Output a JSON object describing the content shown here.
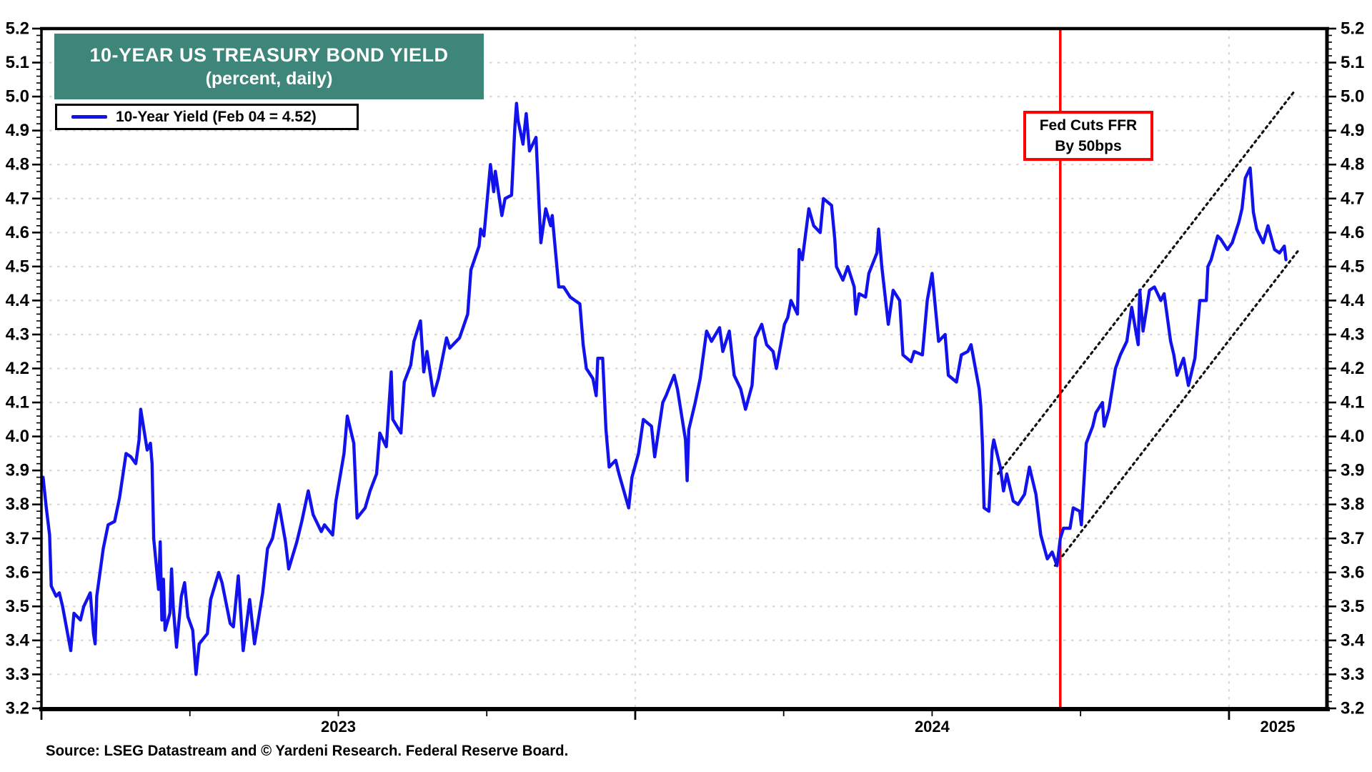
{
  "header": {
    "title": "10-YEAR US TREASURY BOND YIELD",
    "subtitle": "(percent, daily)"
  },
  "legend": {
    "series_label": "10-Year Yield (Feb 04 = 4.52)"
  },
  "annotation": {
    "line1": "Fed Cuts FFR",
    "line2": "By 50bps"
  },
  "footer": {
    "source": "Source: LSEG Datastream and © Yardeni Research. Federal Reserve Board."
  },
  "colors": {
    "series_blue": "#1212EC",
    "event_red": "#FF0000",
    "title_teal": "#3E857A",
    "grid_gray": "#D8D8D8",
    "channel_black": "#111111",
    "text_black": "#000000",
    "axis_black": "#000000",
    "background": "#FFFFFF"
  },
  "chart_data": {
    "type": "line",
    "title": "10-YEAR US TREASURY BOND YIELD",
    "subtitle": "(percent, daily)",
    "ylabel": "percent",
    "ylim": [
      3.2,
      5.2
    ],
    "y_tick_step": 0.1,
    "y_minor_tick_step": 0.02,
    "x_start_year": 2023.0,
    "x_end_year": 2025.165,
    "x_tick_years": [
      2023,
      2024,
      2025
    ],
    "x_minor_tick_step_years": 0.25,
    "x_year_labels": [
      "2023",
      "2024",
      "2025"
    ],
    "x_year_label_positions": [
      2023.5,
      2024.5,
      2025.082
    ],
    "grid_vertical_years": [
      2024,
      2025
    ],
    "grid_horizontal": true,
    "legend_position": "top-left",
    "event_line": {
      "date": "2024-09-18",
      "label": "Fed Cuts FFR By 50bps"
    },
    "event_box_anchor": {
      "t": 2024.763,
      "v": 4.885
    },
    "trend_channel": {
      "upper": {
        "from": {
          "t": 2024.611,
          "v": 3.89
        },
        "to": {
          "t": 2025.112,
          "v": 5.02
        }
      },
      "lower": {
        "from": {
          "t": 2024.707,
          "v": 3.62
        },
        "to": {
          "t": 2025.118,
          "v": 4.55
        }
      }
    },
    "series": [
      {
        "name": "10-Year Yield",
        "last_point_label": "Feb 04 = 4.52",
        "points": [
          [
            "2023-01-01",
            3.88
          ],
          [
            "2023-01-03",
            3.79
          ],
          [
            "2023-01-05",
            3.71
          ],
          [
            "2023-01-06",
            3.56
          ],
          [
            "2023-01-09",
            3.53
          ],
          [
            "2023-01-11",
            3.54
          ],
          [
            "2023-01-13",
            3.5
          ],
          [
            "2023-01-18",
            3.37
          ],
          [
            "2023-01-20",
            3.48
          ],
          [
            "2023-01-24",
            3.46
          ],
          [
            "2023-01-26",
            3.5
          ],
          [
            "2023-01-30",
            3.54
          ],
          [
            "2023-02-01",
            3.42
          ],
          [
            "2023-02-02",
            3.39
          ],
          [
            "2023-02-03",
            3.53
          ],
          [
            "2023-02-07",
            3.67
          ],
          [
            "2023-02-10",
            3.74
          ],
          [
            "2023-02-14",
            3.75
          ],
          [
            "2023-02-17",
            3.82
          ],
          [
            "2023-02-21",
            3.95
          ],
          [
            "2023-02-24",
            3.94
          ],
          [
            "2023-02-27",
            3.92
          ],
          [
            "2023-03-01",
            3.99
          ],
          [
            "2023-03-02",
            4.08
          ],
          [
            "2023-03-06",
            3.96
          ],
          [
            "2023-03-08",
            3.98
          ],
          [
            "2023-03-09",
            3.92
          ],
          [
            "2023-03-10",
            3.7
          ],
          [
            "2023-03-13",
            3.55
          ],
          [
            "2023-03-14",
            3.69
          ],
          [
            "2023-03-15",
            3.46
          ],
          [
            "2023-03-16",
            3.58
          ],
          [
            "2023-03-17",
            3.43
          ],
          [
            "2023-03-20",
            3.48
          ],
          [
            "2023-03-21",
            3.61
          ],
          [
            "2023-03-22",
            3.5
          ],
          [
            "2023-03-24",
            3.38
          ],
          [
            "2023-03-27",
            3.53
          ],
          [
            "2023-03-29",
            3.57
          ],
          [
            "2023-03-31",
            3.47
          ],
          [
            "2023-04-03",
            3.43
          ],
          [
            "2023-04-05",
            3.3
          ],
          [
            "2023-04-07",
            3.39
          ],
          [
            "2023-04-12",
            3.42
          ],
          [
            "2023-04-14",
            3.52
          ],
          [
            "2023-04-19",
            3.6
          ],
          [
            "2023-04-21",
            3.57
          ],
          [
            "2023-04-26",
            3.45
          ],
          [
            "2023-04-28",
            3.44
          ],
          [
            "2023-05-01",
            3.59
          ],
          [
            "2023-05-04",
            3.37
          ],
          [
            "2023-05-08",
            3.52
          ],
          [
            "2023-05-11",
            3.39
          ],
          [
            "2023-05-16",
            3.54
          ],
          [
            "2023-05-19",
            3.67
          ],
          [
            "2023-05-22",
            3.7
          ],
          [
            "2023-05-26",
            3.8
          ],
          [
            "2023-05-30",
            3.69
          ],
          [
            "2023-06-01",
            3.61
          ],
          [
            "2023-06-06",
            3.69
          ],
          [
            "2023-06-09",
            3.75
          ],
          [
            "2023-06-13",
            3.84
          ],
          [
            "2023-06-16",
            3.77
          ],
          [
            "2023-06-21",
            3.72
          ],
          [
            "2023-06-23",
            3.74
          ],
          [
            "2023-06-28",
            3.71
          ],
          [
            "2023-06-30",
            3.81
          ],
          [
            "2023-07-05",
            3.95
          ],
          [
            "2023-07-07",
            4.06
          ],
          [
            "2023-07-11",
            3.98
          ],
          [
            "2023-07-13",
            3.76
          ],
          [
            "2023-07-18",
            3.79
          ],
          [
            "2023-07-21",
            3.84
          ],
          [
            "2023-07-25",
            3.89
          ],
          [
            "2023-07-27",
            4.01
          ],
          [
            "2023-07-31",
            3.97
          ],
          [
            "2023-08-03",
            4.19
          ],
          [
            "2023-08-04",
            4.05
          ],
          [
            "2023-08-09",
            4.01
          ],
          [
            "2023-08-11",
            4.16
          ],
          [
            "2023-08-15",
            4.21
          ],
          [
            "2023-08-17",
            4.28
          ],
          [
            "2023-08-21",
            4.34
          ],
          [
            "2023-08-23",
            4.19
          ],
          [
            "2023-08-25",
            4.25
          ],
          [
            "2023-08-29",
            4.12
          ],
          [
            "2023-09-01",
            4.17
          ],
          [
            "2023-09-06",
            4.29
          ],
          [
            "2023-09-08",
            4.26
          ],
          [
            "2023-09-12",
            4.28
          ],
          [
            "2023-09-14",
            4.29
          ],
          [
            "2023-09-19",
            4.36
          ],
          [
            "2023-09-21",
            4.49
          ],
          [
            "2023-09-26",
            4.56
          ],
          [
            "2023-09-27",
            4.61
          ],
          [
            "2023-09-29",
            4.59
          ],
          [
            "2023-10-03",
            4.8
          ],
          [
            "2023-10-05",
            4.72
          ],
          [
            "2023-10-06",
            4.78
          ],
          [
            "2023-10-10",
            4.65
          ],
          [
            "2023-10-12",
            4.7
          ],
          [
            "2023-10-16",
            4.71
          ],
          [
            "2023-10-18",
            4.91
          ],
          [
            "2023-10-19",
            4.98
          ],
          [
            "2023-10-20",
            4.93
          ],
          [
            "2023-10-23",
            4.86
          ],
          [
            "2023-10-25",
            4.95
          ],
          [
            "2023-10-27",
            4.84
          ],
          [
            "2023-10-31",
            4.88
          ],
          [
            "2023-11-02",
            4.67
          ],
          [
            "2023-11-03",
            4.57
          ],
          [
            "2023-11-06",
            4.67
          ],
          [
            "2023-11-09",
            4.62
          ],
          [
            "2023-11-10",
            4.65
          ],
          [
            "2023-11-14",
            4.44
          ],
          [
            "2023-11-17",
            4.44
          ],
          [
            "2023-11-21",
            4.41
          ],
          [
            "2023-11-27",
            4.39
          ],
          [
            "2023-11-29",
            4.27
          ],
          [
            "2023-12-01",
            4.2
          ],
          [
            "2023-12-05",
            4.17
          ],
          [
            "2023-12-07",
            4.12
          ],
          [
            "2023-12-08",
            4.23
          ],
          [
            "2023-12-11",
            4.23
          ],
          [
            "2023-12-13",
            4.02
          ],
          [
            "2023-12-15",
            3.91
          ],
          [
            "2023-12-19",
            3.93
          ],
          [
            "2023-12-21",
            3.89
          ],
          [
            "2023-12-27",
            3.79
          ],
          [
            "2023-12-29",
            3.88
          ],
          [
            "2024-01-02",
            3.95
          ],
          [
            "2024-01-05",
            4.05
          ],
          [
            "2024-01-10",
            4.03
          ],
          [
            "2024-01-12",
            3.94
          ],
          [
            "2024-01-17",
            4.1
          ],
          [
            "2024-01-19",
            4.12
          ],
          [
            "2024-01-24",
            4.18
          ],
          [
            "2024-01-26",
            4.14
          ],
          [
            "2024-01-31",
            3.99
          ],
          [
            "2024-02-01",
            3.87
          ],
          [
            "2024-02-02",
            4.02
          ],
          [
            "2024-02-06",
            4.1
          ],
          [
            "2024-02-09",
            4.17
          ],
          [
            "2024-02-13",
            4.31
          ],
          [
            "2024-02-16",
            4.28
          ],
          [
            "2024-02-21",
            4.32
          ],
          [
            "2024-02-23",
            4.25
          ],
          [
            "2024-02-27",
            4.31
          ],
          [
            "2024-03-01",
            4.18
          ],
          [
            "2024-03-05",
            4.14
          ],
          [
            "2024-03-08",
            4.08
          ],
          [
            "2024-03-12",
            4.15
          ],
          [
            "2024-03-14",
            4.29
          ],
          [
            "2024-03-18",
            4.33
          ],
          [
            "2024-03-21",
            4.27
          ],
          [
            "2024-03-25",
            4.25
          ],
          [
            "2024-03-27",
            4.2
          ],
          [
            "2024-04-01",
            4.33
          ],
          [
            "2024-04-03",
            4.35
          ],
          [
            "2024-04-05",
            4.4
          ],
          [
            "2024-04-09",
            4.36
          ],
          [
            "2024-04-10",
            4.55
          ],
          [
            "2024-04-12",
            4.52
          ],
          [
            "2024-04-16",
            4.67
          ],
          [
            "2024-04-19",
            4.62
          ],
          [
            "2024-04-23",
            4.6
          ],
          [
            "2024-04-25",
            4.7
          ],
          [
            "2024-04-30",
            4.68
          ],
          [
            "2024-05-02",
            4.58
          ],
          [
            "2024-05-03",
            4.5
          ],
          [
            "2024-05-07",
            4.46
          ],
          [
            "2024-05-10",
            4.5
          ],
          [
            "2024-05-14",
            4.44
          ],
          [
            "2024-05-15",
            4.36
          ],
          [
            "2024-05-17",
            4.42
          ],
          [
            "2024-05-21",
            4.41
          ],
          [
            "2024-05-23",
            4.48
          ],
          [
            "2024-05-28",
            4.54
          ],
          [
            "2024-05-29",
            4.61
          ],
          [
            "2024-05-31",
            4.5
          ],
          [
            "2024-06-04",
            4.33
          ],
          [
            "2024-06-07",
            4.43
          ],
          [
            "2024-06-11",
            4.4
          ],
          [
            "2024-06-13",
            4.24
          ],
          [
            "2024-06-18",
            4.22
          ],
          [
            "2024-06-20",
            4.25
          ],
          [
            "2024-06-25",
            4.24
          ],
          [
            "2024-06-28",
            4.4
          ],
          [
            "2024-07-01",
            4.48
          ],
          [
            "2024-07-02",
            4.43
          ],
          [
            "2024-07-05",
            4.28
          ],
          [
            "2024-07-09",
            4.3
          ],
          [
            "2024-07-11",
            4.18
          ],
          [
            "2024-07-16",
            4.16
          ],
          [
            "2024-07-19",
            4.24
          ],
          [
            "2024-07-23",
            4.25
          ],
          [
            "2024-07-25",
            4.27
          ],
          [
            "2024-07-30",
            4.14
          ],
          [
            "2024-07-31",
            4.09
          ],
          [
            "2024-08-01",
            3.98
          ],
          [
            "2024-08-02",
            3.79
          ],
          [
            "2024-08-05",
            3.78
          ],
          [
            "2024-08-07",
            3.96
          ],
          [
            "2024-08-08",
            3.99
          ],
          [
            "2024-08-12",
            3.91
          ],
          [
            "2024-08-14",
            3.84
          ],
          [
            "2024-08-16",
            3.89
          ],
          [
            "2024-08-20",
            3.81
          ],
          [
            "2024-08-23",
            3.8
          ],
          [
            "2024-08-27",
            3.83
          ],
          [
            "2024-08-30",
            3.91
          ],
          [
            "2024-09-03",
            3.83
          ],
          [
            "2024-09-06",
            3.71
          ],
          [
            "2024-09-10",
            3.64
          ],
          [
            "2024-09-13",
            3.66
          ],
          [
            "2024-09-16",
            3.62
          ],
          [
            "2024-09-18",
            3.7
          ],
          [
            "2024-09-20",
            3.73
          ],
          [
            "2024-09-24",
            3.73
          ],
          [
            "2024-09-26",
            3.79
          ],
          [
            "2024-09-30",
            3.78
          ],
          [
            "2024-10-01",
            3.74
          ],
          [
            "2024-10-04",
            3.98
          ],
          [
            "2024-10-08",
            4.03
          ],
          [
            "2024-10-10",
            4.07
          ],
          [
            "2024-10-14",
            4.1
          ],
          [
            "2024-10-15",
            4.03
          ],
          [
            "2024-10-18",
            4.08
          ],
          [
            "2024-10-22",
            4.2
          ],
          [
            "2024-10-25",
            4.24
          ],
          [
            "2024-10-29",
            4.28
          ],
          [
            "2024-11-01",
            4.38
          ],
          [
            "2024-11-05",
            4.27
          ],
          [
            "2024-11-06",
            4.43
          ],
          [
            "2024-11-08",
            4.31
          ],
          [
            "2024-11-12",
            4.43
          ],
          [
            "2024-11-15",
            4.44
          ],
          [
            "2024-11-19",
            4.4
          ],
          [
            "2024-11-21",
            4.42
          ],
          [
            "2024-11-25",
            4.28
          ],
          [
            "2024-11-27",
            4.24
          ],
          [
            "2024-11-29",
            4.18
          ],
          [
            "2024-12-03",
            4.23
          ],
          [
            "2024-12-06",
            4.15
          ],
          [
            "2024-12-10",
            4.23
          ],
          [
            "2024-12-13",
            4.4
          ],
          [
            "2024-12-17",
            4.4
          ],
          [
            "2024-12-18",
            4.5
          ],
          [
            "2024-12-20",
            4.52
          ],
          [
            "2024-12-24",
            4.59
          ],
          [
            "2024-12-26",
            4.58
          ],
          [
            "2024-12-30",
            4.55
          ],
          [
            "2025-01-02",
            4.57
          ],
          [
            "2025-01-06",
            4.63
          ],
          [
            "2025-01-08",
            4.67
          ],
          [
            "2025-01-10",
            4.76
          ],
          [
            "2025-01-13",
            4.79
          ],
          [
            "2025-01-15",
            4.66
          ],
          [
            "2025-01-17",
            4.61
          ],
          [
            "2025-01-21",
            4.57
          ],
          [
            "2025-01-24",
            4.62
          ],
          [
            "2025-01-28",
            4.55
          ],
          [
            "2025-01-31",
            4.54
          ],
          [
            "2025-02-03",
            4.56
          ],
          [
            "2025-02-04",
            4.52
          ]
        ]
      }
    ]
  }
}
